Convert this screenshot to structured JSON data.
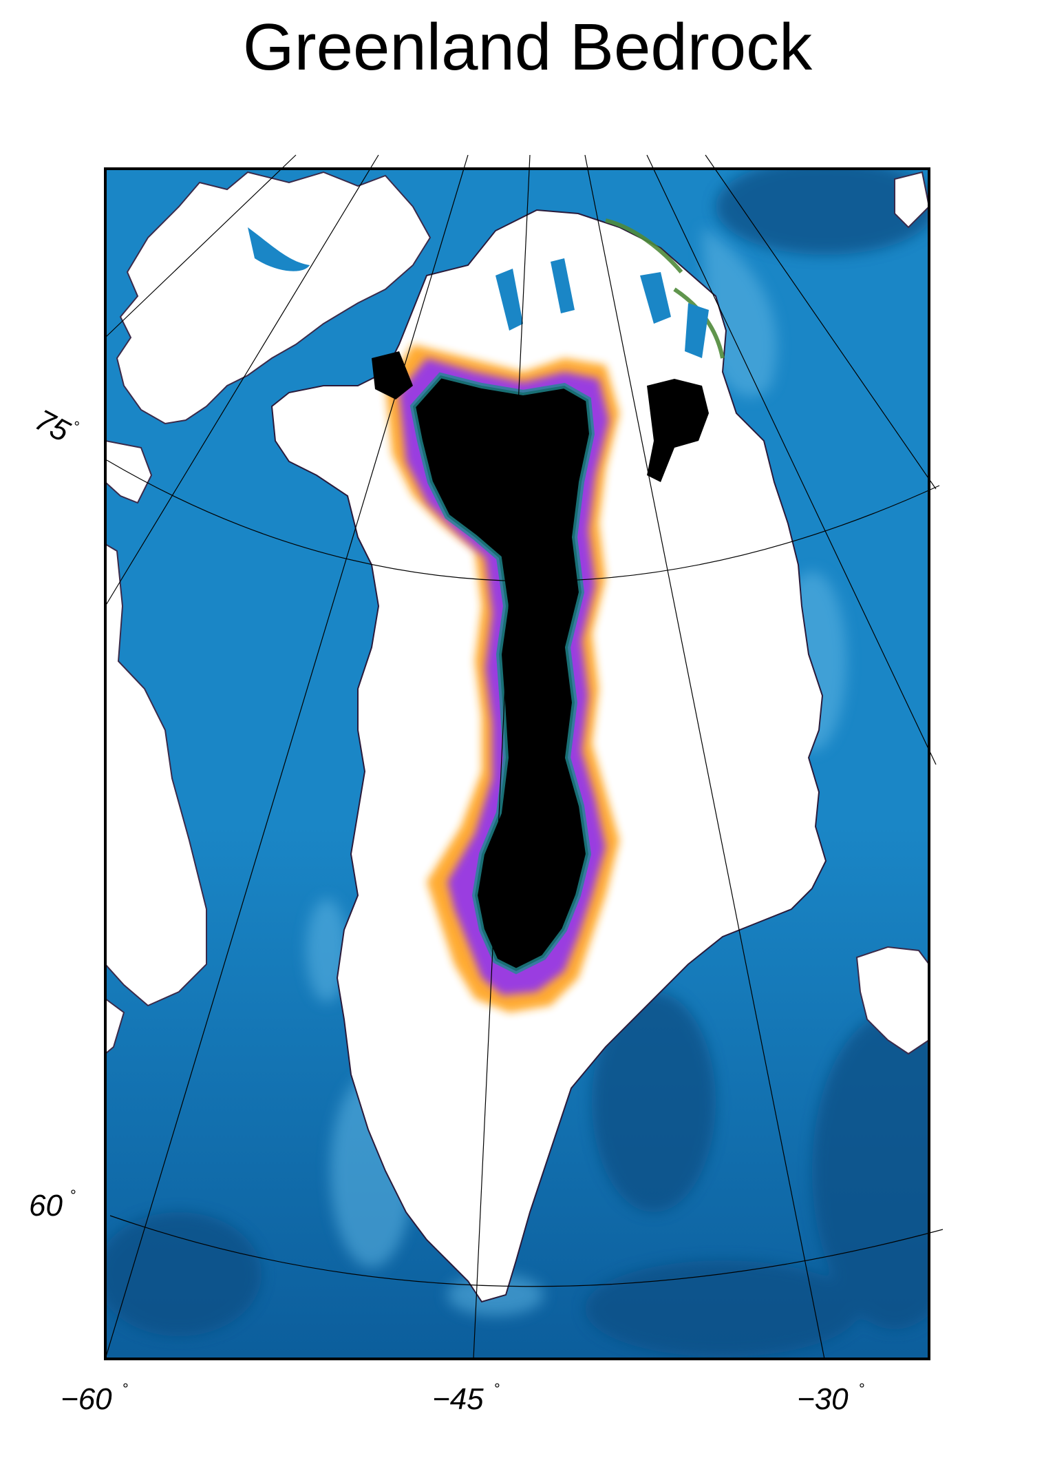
{
  "title": "Greenland Bedrock",
  "axes": {
    "bottom_ticks": [
      {
        "value": -60,
        "label": "−60"
      },
      {
        "value": -45,
        "label": "−45"
      },
      {
        "value": -30,
        "label": "−30"
      }
    ],
    "left_ticks": [
      {
        "value": 75,
        "label": "75"
      },
      {
        "value": 60,
        "label": "60"
      }
    ],
    "degree_symbol": "°"
  },
  "colors": {
    "ocean_deep": "#0b4f85",
    "ocean": "#1a86c6",
    "ocean_shelf": "#5fb6e4",
    "ice_white": "#ffffff",
    "below_sea_level": "#000000",
    "transition_purple": "#9a3de0",
    "transition_orange": "#ffa31a",
    "transition_teal": "#1f8b91",
    "coast_green": "#4f8a3a",
    "graticule": "#000000",
    "frame": "#000000"
  }
}
